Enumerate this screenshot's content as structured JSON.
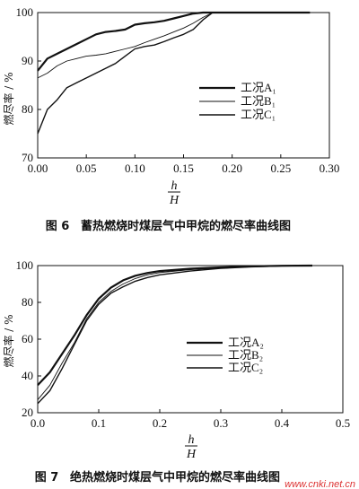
{
  "chart_data": [
    {
      "type": "line",
      "figure_number": "图 6",
      "caption": "蓄热燃烧时煤层气中甲烷的燃尽率曲线图",
      "ylabel": "燃尽率 / %",
      "xlabel_num": "h",
      "xlabel_den": "H",
      "xlim": [
        0,
        0.3
      ],
      "ylim": [
        70,
        100
      ],
      "x_ticks": [
        "0.00",
        "0.05",
        "0.10",
        "0.15",
        "0.20",
        "0.25",
        "0.30"
      ],
      "y_ticks": [
        "70",
        "80",
        "90",
        "100"
      ],
      "legend_position": "center-right",
      "series": [
        {
          "name": "工况A₁",
          "line_width": 2.2,
          "x": [
            0.0,
            0.01,
            0.02,
            0.03,
            0.04,
            0.05,
            0.06,
            0.07,
            0.08,
            0.09,
            0.1,
            0.11,
            0.12,
            0.13,
            0.14,
            0.15,
            0.16,
            0.17,
            0.18,
            0.28
          ],
          "y": [
            88,
            90.5,
            91.5,
            92.5,
            93.5,
            94.5,
            95.5,
            96,
            96.2,
            96.5,
            97.5,
            97.8,
            98,
            98.3,
            98.8,
            99.3,
            99.8,
            100,
            100,
            100
          ]
        },
        {
          "name": "工况B₁",
          "line_width": 0.9,
          "x": [
            0.0,
            0.01,
            0.02,
            0.03,
            0.04,
            0.05,
            0.06,
            0.07,
            0.08,
            0.09,
            0.1,
            0.11,
            0.12,
            0.13,
            0.14,
            0.15,
            0.16,
            0.17,
            0.18,
            0.28
          ],
          "y": [
            86.5,
            87.5,
            89,
            90,
            90.5,
            91,
            91.2,
            91.5,
            92,
            92.5,
            93,
            93.8,
            94.5,
            95.2,
            96,
            96.8,
            97.8,
            99,
            100,
            100
          ]
        },
        {
          "name": "工况C₁",
          "line_width": 1.4,
          "x": [
            0.0,
            0.01,
            0.02,
            0.03,
            0.04,
            0.05,
            0.06,
            0.07,
            0.08,
            0.09,
            0.1,
            0.11,
            0.12,
            0.13,
            0.14,
            0.15,
            0.16,
            0.17,
            0.18,
            0.28
          ],
          "y": [
            75,
            80,
            82,
            84.5,
            85.5,
            86.5,
            87.5,
            88.5,
            89.5,
            91,
            92.5,
            93,
            93.3,
            94,
            94.8,
            95.5,
            96.5,
            98.5,
            100,
            100
          ]
        }
      ]
    },
    {
      "type": "line",
      "figure_number": "图 7",
      "caption": "绝热燃烧时煤层气中甲烷的燃尽率曲线图",
      "ylabel": "燃尽率 / %",
      "xlabel_num": "h",
      "xlabel_den": "H",
      "xlim": [
        0,
        0.5
      ],
      "ylim": [
        20,
        100
      ],
      "x_ticks": [
        "0.0",
        "0.1",
        "0.2",
        "0.3",
        "0.4",
        "0.5"
      ],
      "y_ticks": [
        "20",
        "40",
        "60",
        "80",
        "100"
      ],
      "legend_position": "center-right",
      "series": [
        {
          "name": "工况A₂",
          "line_width": 2.2,
          "x": [
            0.0,
            0.02,
            0.04,
            0.06,
            0.08,
            0.1,
            0.12,
            0.14,
            0.16,
            0.18,
            0.2,
            0.25,
            0.3,
            0.35,
            0.4,
            0.45
          ],
          "y": [
            35,
            42,
            52,
            62,
            73,
            82,
            88,
            92,
            94.5,
            96,
            97,
            98.3,
            99,
            99.6,
            99.9,
            100
          ]
        },
        {
          "name": "工况B₂",
          "line_width": 0.9,
          "x": [
            0.0,
            0.02,
            0.04,
            0.06,
            0.08,
            0.1,
            0.12,
            0.14,
            0.16,
            0.18,
            0.2,
            0.25,
            0.3,
            0.35,
            0.4,
            0.45
          ],
          "y": [
            27,
            35,
            47,
            58,
            71,
            80,
            86,
            90,
            93,
            95,
            96.2,
            97.8,
            98.8,
            99.5,
            99.9,
            100
          ]
        },
        {
          "name": "工况C₂",
          "line_width": 1.4,
          "x": [
            0.0,
            0.02,
            0.04,
            0.06,
            0.08,
            0.1,
            0.12,
            0.14,
            0.16,
            0.18,
            0.2,
            0.25,
            0.3,
            0.35,
            0.4,
            0.45
          ],
          "y": [
            25,
            32,
            44,
            57,
            70,
            79,
            85,
            88.5,
            91.5,
            93.5,
            95,
            97,
            98.5,
            99.3,
            99.8,
            100
          ]
        }
      ]
    }
  ],
  "watermark": "www.cnki.net.cn"
}
